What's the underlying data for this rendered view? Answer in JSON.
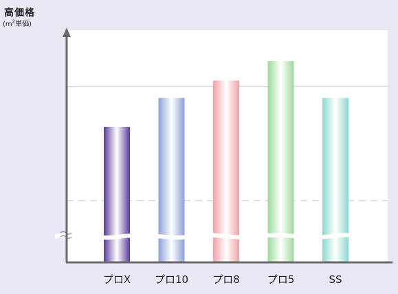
{
  "chart_data": {
    "type": "bar",
    "title": "",
    "ylabel": "高価格",
    "ylabel_unit_prefix": "(m",
    "ylabel_unit_sup": "2",
    "ylabel_unit_suffix": "単価)",
    "xlabel": "",
    "categories": [
      "プロX",
      "プロ10",
      "プロ8",
      "プロ5",
      "SS"
    ],
    "values": [
      70,
      85,
      94,
      104,
      85
    ],
    "ylim": [
      0,
      120
    ],
    "axis_break": true,
    "gridlines": [
      {
        "value": 91,
        "style": "solid"
      },
      {
        "value": 32,
        "style": "dashed"
      }
    ],
    "colors": [
      "#5a3a9a",
      "#8c9fd8",
      "#f0a0a8",
      "#9fd89a",
      "#8cd8d0"
    ],
    "legend": "none"
  }
}
